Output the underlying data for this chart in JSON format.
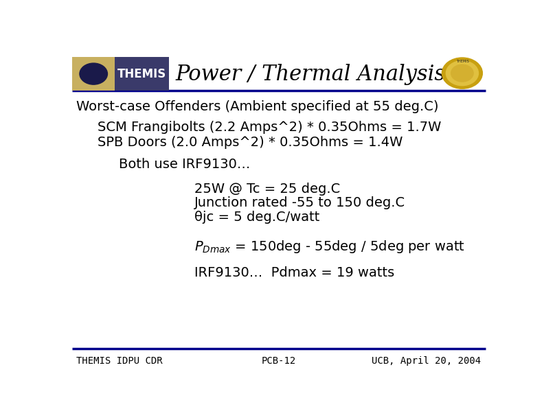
{
  "title": "Power / Thermal Analysis",
  "header_line_color": "#00008B",
  "footer_line_color": "#00008B",
  "bg_color": "#ffffff",
  "subtitle": "Worst-case Offenders (Ambient specified at 55 deg.C)",
  "line1": "SCM Frangibolts (2.2 Amps^2) * 0.35Ohms = 1.7W",
  "line2": "SPB Doors (2.0 Amps^2) * 0.35Ohms = 1.4W",
  "line3": "Both use IRF9130…",
  "line4a": "25W @ Tc = 25 deg.C",
  "line4b": "Junction rated -55 to 150 deg.C",
  "line4c": "θjc = 5 deg.C/watt",
  "line5_post": " = 150deg - 55deg / 5deg per watt",
  "line6": "IRF9130…  Pdmax = 19 watts",
  "footer_left": "THEMIS IDPU CDR",
  "footer_center": "PCB-12",
  "footer_right": "UCB, April 20, 2004",
  "text_color": "#000000",
  "title_fontsize": 22,
  "body_fontsize": 14,
  "footer_fontsize": 10,
  "themis_bg_color": "#3a3a6a",
  "themis_tan_color": "#c8b060",
  "themis_text_color": "#ffffff",
  "athena_color": "#d4a020"
}
